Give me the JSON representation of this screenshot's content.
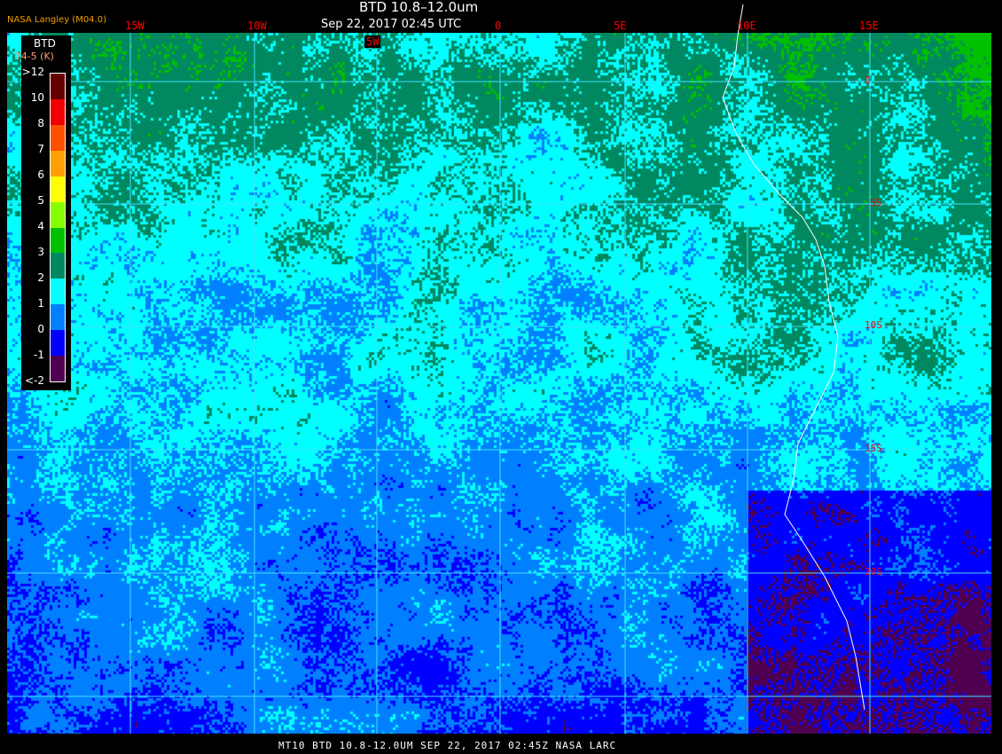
{
  "header": {
    "title": "BTD 10.8–12.0um",
    "subtitle": "Sep 22, 2017 02:45 UTC",
    "brand": "NASA Langley (M04.0)"
  },
  "footer": {
    "text": "MT10  BTD 10.8-12.0UM   SEP 22, 2017 02:45Z   NASA LARC"
  },
  "longitude_labels": [
    "15W",
    "10W",
    "5W",
    "0",
    "5E",
    "10E",
    "15E"
  ],
  "latitude_labels": [
    "0",
    "5S",
    "10S",
    "15S",
    "20S"
  ],
  "legend": {
    "title": "BTD",
    "units": "T4-5 (K)",
    "ticks": [
      ">12",
      "10",
      "8",
      "7",
      "6",
      "5",
      "4",
      "3",
      "2",
      "1",
      "0",
      "-1",
      "<-2"
    ],
    "colors": [
      "#660000",
      "#f00000",
      "#ff5000",
      "#ffa000",
      "#ffff00",
      "#88ff00",
      "#00c000",
      "#008860",
      "#00ffff",
      "#0080ff",
      "#0000ff",
      "#500050"
    ]
  },
  "colors": {
    "gridline": "#40e0ff",
    "label": "#ff0000",
    "coastline": "#ffffff"
  }
}
